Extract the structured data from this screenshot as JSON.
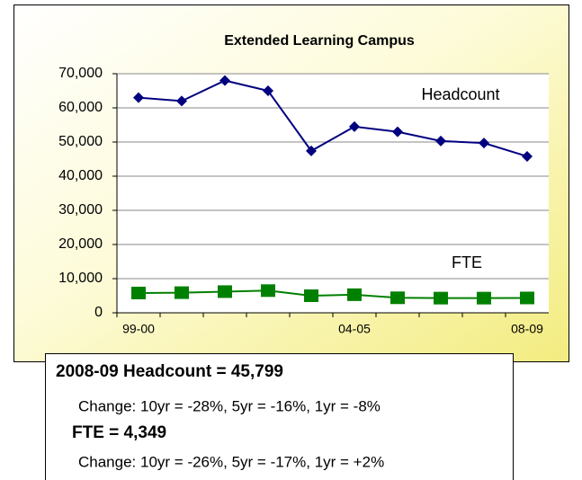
{
  "chart_data": {
    "type": "line",
    "title": "Extended Learning Campus",
    "categories": [
      "99-00",
      null,
      null,
      null,
      null,
      "04-05",
      null,
      null,
      null,
      "08-09"
    ],
    "series": [
      {
        "name": "Headcount",
        "color": "#000080",
        "marker": "diamond",
        "values": [
          63000,
          62000,
          68000,
          65000,
          47400,
          54500,
          53000,
          50300,
          49700,
          45799
        ]
      },
      {
        "name": "FTE",
        "color": "#008000",
        "marker": "square",
        "values": [
          5800,
          5900,
          6200,
          6500,
          5000,
          5300,
          4400,
          4300,
          4300,
          4349
        ]
      }
    ],
    "ylim": [
      0,
      70000
    ],
    "yticks": [
      0,
      {
        "value": 10000,
        "label": "10,000"
      },
      {
        "value": 20000,
        "label": "20,000"
      },
      {
        "value": 30000,
        "label": "30,000"
      },
      {
        "value": 40000,
        "label": "40,000"
      },
      {
        "value": 50000,
        "label": "50,000"
      },
      {
        "value": 60000,
        "label": "60,000"
      },
      {
        "value": 70000,
        "label": "70,000"
      }
    ],
    "grid": true,
    "text_box": [
      "2008-09 Headcount = 45,799",
      "Change: 10yr = -28%, 5yr = -16%, 1yr = -8%",
      "FTE = 4,349",
      "Change:  10yr = -26%, 5yr = -17%, 1yr = +2%"
    ]
  }
}
